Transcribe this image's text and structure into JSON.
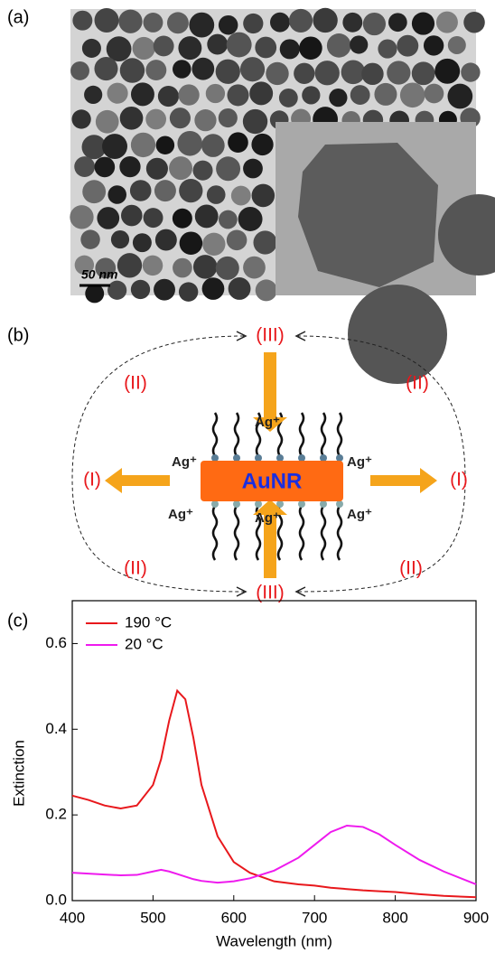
{
  "panel_a": {
    "label": "(a)",
    "scale_bar": "50 nm"
  },
  "panel_b": {
    "label": "(b)",
    "rod": "AuNR",
    "ion": "Ag⁺",
    "region_top": "(III)",
    "region_bottom": "(III)",
    "region_left": "(I)",
    "region_right": "(I)",
    "region_tl": "(II)",
    "region_tr": "(II)",
    "region_bl": "(II)",
    "region_br": "(II)"
  },
  "chart_data": {
    "type": "line",
    "panel_label": "(c)",
    "x_label": "Wavelength (nm)",
    "y_label": "Extinction",
    "x": [
      400,
      420,
      440,
      460,
      480,
      500,
      510,
      520,
      530,
      540,
      550,
      560,
      580,
      600,
      620,
      650,
      680,
      700,
      720,
      740,
      760,
      780,
      800,
      830,
      860,
      900
    ],
    "series": [
      {
        "name": "190 °C",
        "color": "#e8181c",
        "values": [
          0.245,
          0.235,
          0.222,
          0.215,
          0.222,
          0.27,
          0.33,
          0.42,
          0.49,
          0.47,
          0.38,
          0.27,
          0.15,
          0.09,
          0.065,
          0.045,
          0.038,
          0.035,
          0.03,
          0.027,
          0.024,
          0.022,
          0.02,
          0.015,
          0.011,
          0.008
        ]
      },
      {
        "name": "20 °C",
        "color": "#ee1aee",
        "values": [
          0.065,
          0.063,
          0.061,
          0.059,
          0.06,
          0.068,
          0.072,
          0.068,
          0.062,
          0.056,
          0.05,
          0.046,
          0.042,
          0.045,
          0.052,
          0.07,
          0.1,
          0.13,
          0.16,
          0.175,
          0.172,
          0.155,
          0.13,
          0.095,
          0.068,
          0.038
        ]
      }
    ],
    "xlim": [
      400,
      900
    ],
    "xticks": [
      400,
      500,
      600,
      700,
      800,
      900
    ],
    "ylim": [
      0,
      0.7
    ],
    "yticks": [
      {
        "value": 0,
        "label": "0.0"
      },
      0.2,
      0.4,
      0.6
    ],
    "legend": "top-left"
  }
}
